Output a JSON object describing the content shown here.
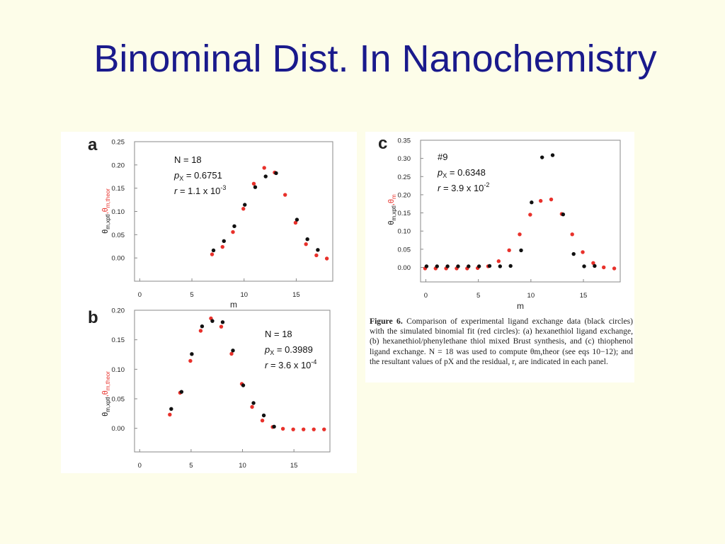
{
  "slide": {
    "title": "Binominal Dist. In Nanochemistry"
  },
  "colors": {
    "experimental": "#111111",
    "theoretical": "#e8312b",
    "title": "#1a1a8c"
  },
  "chart_data": [
    {
      "panel": "a",
      "type": "scatter",
      "annotations": [
        "N = 18",
        "p",
        "X",
        " = 0.6751",
        "r",
        " = 1.1 x 10",
        "-3"
      ],
      "xlabel": "m",
      "ylabel_parts": [
        "θ",
        "m,xptl",
        ",θ",
        "m,theor"
      ],
      "xlim": [
        -0.5,
        18.5
      ],
      "ylim": [
        -0.05,
        0.25
      ],
      "xticks": [
        "0",
        "5",
        "10",
        "15"
      ],
      "yticks": [
        "0.00",
        "0.05",
        "0.10",
        "0.15",
        "0.20",
        "0.25"
      ],
      "series": [
        {
          "x": [
            7,
            8,
            9,
            10,
            11,
            12,
            13,
            14,
            15,
            16,
            17,
            18
          ],
          "values": [
            0.01,
            0.026,
            0.058,
            0.108,
            0.162,
            0.196,
            0.186,
            0.138,
            0.078,
            0.032,
            0.008,
            0.001
          ]
        },
        {
          "x": [
            7,
            8,
            9,
            10,
            11,
            12,
            13,
            15,
            16,
            17
          ],
          "values": [
            0.014,
            0.034,
            0.066,
            0.112,
            0.15,
            0.173,
            0.18,
            0.08,
            0.038,
            0.015
          ]
        }
      ]
    },
    {
      "panel": "b",
      "type": "scatter",
      "annotations": [
        "N = 18",
        "p",
        "X",
        " = 0.3989",
        "r",
        " = 3.6 x 10",
        "-4"
      ],
      "xlabel": "",
      "ylabel_parts": [
        "θ",
        "m,xptl",
        ",θ",
        "m,theor"
      ],
      "xlim": [
        -0.5,
        18.5
      ],
      "ylim": [
        -0.04,
        0.2
      ],
      "xticks": [
        "0",
        "5",
        "10",
        "15"
      ],
      "yticks": [
        "0.00",
        "0.05",
        "0.10",
        "0.15",
        "0.20"
      ],
      "series": [
        {
          "x": [
            3,
            4,
            5,
            6,
            7,
            8,
            9,
            10,
            11,
            12,
            13,
            14,
            15,
            16,
            17,
            18
          ],
          "values": [
            0.025,
            0.062,
            0.116,
            0.167,
            0.188,
            0.174,
            0.128,
            0.077,
            0.038,
            0.015,
            0.004,
            0.001,
            0.0,
            0.0,
            0.0,
            0.0
          ]
        },
        {
          "x": [
            3,
            4,
            5,
            6,
            7,
            8,
            9,
            10,
            11,
            12,
            13
          ],
          "values": [
            0.031,
            0.06,
            0.124,
            0.171,
            0.18,
            0.178,
            0.13,
            0.071,
            0.041,
            0.02,
            0.001
          ]
        }
      ]
    },
    {
      "panel": "c",
      "type": "scatter",
      "annotations": [
        "#9",
        "p",
        "X",
        " = 0.6348",
        "r",
        " = 3.9 x 10",
        "-2"
      ],
      "xlabel": "m",
      "ylabel_parts": [
        "θ",
        "m,xptl",
        ",θ",
        "m"
      ],
      "xlim": [
        -0.5,
        18.5
      ],
      "ylim": [
        -0.04,
        0.35
      ],
      "xticks": [
        "0",
        "5",
        "10",
        "15"
      ],
      "yticks": [
        "0.00",
        "0.05",
        "0.10",
        "0.15",
        "0.20",
        "0.25",
        "0.30",
        "0.35"
      ],
      "series": [
        {
          "x": [
            0,
            1,
            2,
            3,
            4,
            5,
            6,
            7,
            8,
            9,
            10,
            11,
            12,
            13,
            14,
            15,
            16,
            17,
            18
          ],
          "values": [
            0.0,
            0.0,
            0.0,
            0.0,
            0.0,
            0.001,
            0.006,
            0.02,
            0.05,
            0.094,
            0.148,
            0.186,
            0.19,
            0.15,
            0.094,
            0.045,
            0.015,
            0.003,
            0.0
          ]
        },
        {
          "x": [
            0,
            1,
            2,
            3,
            4,
            5,
            6,
            7,
            8,
            9,
            10,
            11,
            12,
            13,
            14,
            15,
            16
          ],
          "values": [
            0.0,
            0.0,
            0.0,
            0.0,
            0.0,
            0.0,
            0.001,
            0.0,
            0.001,
            0.044,
            0.176,
            0.3,
            0.306,
            0.143,
            0.034,
            0.0,
            0.001
          ]
        }
      ]
    }
  ],
  "caption": {
    "label": "Figure 6.",
    "text": "Comparison of experimental ligand exchange data (black circles) with the simulated binomial fit (red circles): (a) hexanethiol ligand exchange, (b) hexanethiol/phenylethane thiol mixed Brust synthesis, and (c) thiophenol ligand exchange. N = 18 was used to compute θm,theor (see eqs 10−12); and the resultant values of pX and the residual, r, are indicated in each panel."
  }
}
